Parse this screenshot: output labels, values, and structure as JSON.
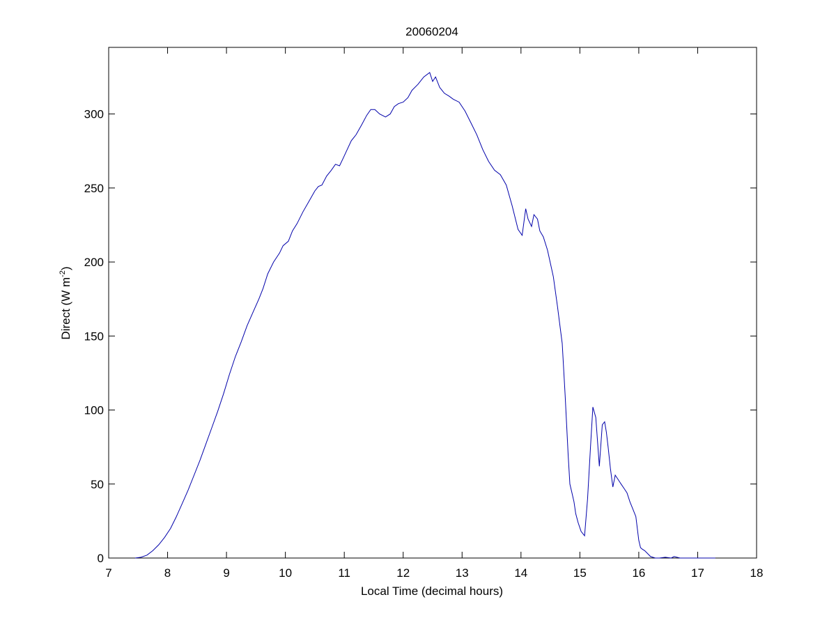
{
  "chart_data": {
    "type": "line",
    "title": "20060204",
    "xlabel": "Local Time (decimal hours)",
    "ylabel": {
      "main": "Direct (W m",
      "superscript": "-2",
      "close": ")"
    },
    "xlim": [
      7,
      18
    ],
    "ylim": [
      0,
      345
    ],
    "xticks": [
      7,
      8,
      9,
      10,
      11,
      12,
      13,
      14,
      15,
      16,
      17,
      18
    ],
    "yticks": [
      0,
      50,
      100,
      150,
      200,
      250,
      300
    ],
    "grid": false,
    "line_color": "#0000aa",
    "series": [
      {
        "x": [
          7.45,
          7.55,
          7.65,
          7.75,
          7.85,
          7.95,
          8.05,
          8.15,
          8.25,
          8.35,
          8.45,
          8.55,
          8.65,
          8.75,
          8.85,
          8.95,
          9.05,
          9.15,
          9.25,
          9.35,
          9.45,
          9.55,
          9.62,
          9.7,
          9.8,
          9.9,
          9.96,
          10.05,
          10.12,
          10.2,
          10.3,
          10.4,
          10.5,
          10.56,
          10.62,
          10.7,
          10.78,
          10.85,
          10.92,
          10.98,
          11.05,
          11.12,
          11.2,
          11.3,
          11.38,
          11.45,
          11.52,
          11.6,
          11.7,
          11.78,
          11.85,
          11.92,
          12.0,
          12.08,
          12.15,
          12.25,
          12.35,
          12.45,
          12.5,
          12.55,
          12.62,
          12.7,
          12.78,
          12.85,
          12.95,
          13.05,
          13.15,
          13.25,
          13.35,
          13.45,
          13.55,
          13.65,
          13.75,
          13.85,
          13.95,
          14.02,
          14.08,
          14.12,
          14.18,
          14.22,
          14.28,
          14.32,
          14.38,
          14.45,
          14.55,
          14.62,
          14.7,
          14.75,
          14.8,
          14.83,
          14.86,
          14.9,
          14.93,
          14.97,
          15.02,
          15.08,
          15.13,
          15.18,
          15.22,
          15.27,
          15.33,
          15.38,
          15.42,
          15.45,
          15.48,
          15.52,
          15.56,
          15.6,
          15.65,
          15.7,
          15.75,
          15.8,
          15.85,
          15.9,
          15.95,
          16.0,
          16.03,
          16.06,
          16.1,
          16.15,
          16.2,
          16.28,
          16.35,
          16.45,
          16.55,
          16.6,
          16.7,
          16.85,
          17.0,
          17.15,
          17.3
        ],
        "y": [
          0,
          0.5,
          2,
          5,
          9,
          14,
          20,
          28,
          37,
          46,
          56,
          66,
          77,
          88,
          99,
          111,
          124,
          136,
          146,
          157,
          166,
          175,
          182,
          192,
          200,
          206,
          211,
          214,
          221,
          226,
          234,
          241,
          248,
          251,
          252,
          258,
          262,
          266,
          265,
          270,
          276,
          282,
          286,
          293,
          299,
          303,
          303,
          300,
          298,
          300,
          305,
          307,
          308,
          311,
          316,
          320,
          325,
          328,
          322,
          325,
          318,
          314,
          312,
          310,
          308,
          302,
          294,
          286,
          276,
          268,
          262,
          259,
          252,
          238,
          222,
          218,
          236,
          229,
          224,
          232,
          229,
          221,
          217,
          208,
          190,
          170,
          145,
          110,
          70,
          50,
          45,
          38,
          30,
          24,
          18,
          15,
          40,
          75,
          102,
          95,
          62,
          90,
          92,
          85,
          75,
          60,
          48,
          56,
          53,
          50,
          47,
          44,
          38,
          33,
          28,
          12,
          7,
          6,
          5,
          3,
          1,
          0,
          0,
          0.5,
          0,
          1,
          0,
          0,
          0,
          0,
          0
        ]
      }
    ]
  }
}
